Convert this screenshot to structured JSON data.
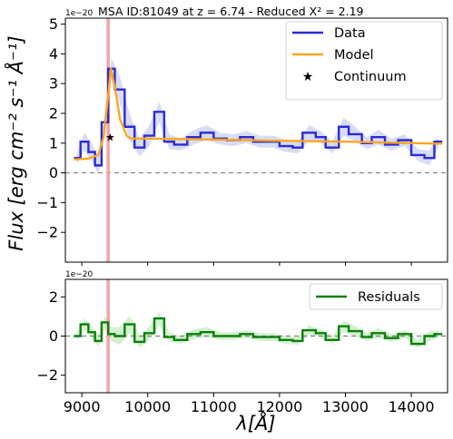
{
  "title": "MSA ID:81049 at z = 6.74 - Reduced X² = 2.19",
  "colors": {
    "data": "#2a2ad8",
    "band": "#b8bfee",
    "model": "#ffa51f",
    "residual": "#0c7f0c",
    "residual_band": "#b5e8b0",
    "line_marker": "#f4a3a3",
    "zero_line": "#808080"
  },
  "chart_data": [
    {
      "type": "line",
      "panel": "spectrum",
      "ylabel": "Flux [erg cm⁻² s⁻¹ Å⁻¹]",
      "scale_label": "1e−20",
      "xlim": [
        8750,
        14550
      ],
      "ylim": [
        -3,
        5.2
      ],
      "yticks": [
        -2,
        -1,
        0,
        1,
        2,
        3,
        4,
        5
      ],
      "ytick_labels": [
        "−2",
        "−1",
        "0",
        "1",
        "2",
        "3",
        "4",
        "5"
      ],
      "zero_line": true,
      "marker_line_x": 9400,
      "legend_position": "top-right",
      "legend": [
        "Data",
        "Model",
        "Continuum"
      ],
      "data": {
        "name": "Data",
        "bin_edges": [
          8880,
          8980,
          9100,
          9200,
          9300,
          9400,
          9500,
          9650,
          9800,
          9950,
          10100,
          10250,
          10400,
          10600,
          10800,
          11000,
          11200,
          11400,
          11600,
          11800,
          12000,
          12200,
          12350,
          12550,
          12700,
          12900,
          13050,
          13250,
          13400,
          13600,
          13800,
          14000,
          14200,
          14350,
          14470
        ],
        "values": [
          0.5,
          1.05,
          0.7,
          0.25,
          1.7,
          3.5,
          2.8,
          1.55,
          0.85,
          1.25,
          2.05,
          1.05,
          0.95,
          1.2,
          1.35,
          1.15,
          1.1,
          1.2,
          1.05,
          1.05,
          0.9,
          0.85,
          1.35,
          1.2,
          0.85,
          1.55,
          1.3,
          1.0,
          1.2,
          0.95,
          1.1,
          0.6,
          0.5,
          1.05
        ],
        "errors": [
          0.2,
          0.3,
          0.3,
          0.3,
          0.35,
          0.35,
          0.45,
          0.45,
          0.3,
          0.35,
          0.35,
          0.25,
          0.2,
          0.25,
          0.25,
          0.2,
          0.2,
          0.2,
          0.2,
          0.2,
          0.2,
          0.2,
          0.25,
          0.2,
          0.2,
          0.3,
          0.25,
          0.2,
          0.25,
          0.2,
          0.2,
          0.2,
          0.25,
          0.2
        ]
      },
      "model": {
        "name": "Model",
        "x": [
          8880,
          9100,
          9250,
          9330,
          9400,
          9440,
          9500,
          9580,
          9680,
          9750,
          10000,
          11000,
          12000,
          13000,
          14000,
          14470
        ],
        "y": [
          0.45,
          0.48,
          0.6,
          1.2,
          2.6,
          3.5,
          2.9,
          1.8,
          1.25,
          1.15,
          1.15,
          1.12,
          1.08,
          1.05,
          1.0,
          0.98
        ]
      },
      "continuum": {
        "name": "Continuum",
        "x": 9430,
        "y": 1.2
      }
    },
    {
      "type": "line",
      "panel": "residuals",
      "xlabel": "λ[Å]",
      "scale_label": "1e−20",
      "xlim": [
        8750,
        14550
      ],
      "ylim": [
        -2.9,
        2.9
      ],
      "yticks": [
        -2,
        0,
        2
      ],
      "ytick_labels": [
        "−2",
        "0",
        "2"
      ],
      "xticks": [
        9000,
        10000,
        11000,
        12000,
        13000,
        14000
      ],
      "xtick_labels": [
        "9000",
        "10000",
        "11000",
        "12000",
        "13000",
        "14000"
      ],
      "zero_line": true,
      "marker_line_x": 9400,
      "legend_position": "top-right",
      "legend": [
        "Residuals"
      ],
      "residuals": {
        "name": "Residuals",
        "bin_edges": [
          8880,
          8980,
          9100,
          9200,
          9300,
          9400,
          9500,
          9650,
          9800,
          9950,
          10100,
          10250,
          10400,
          10600,
          10800,
          11000,
          11200,
          11400,
          11600,
          11800,
          12000,
          12200,
          12350,
          12550,
          12700,
          12900,
          13050,
          13250,
          13400,
          13600,
          13800,
          14000,
          14200,
          14350,
          14470
        ],
        "values": [
          0.0,
          0.6,
          0.2,
          -0.25,
          0.7,
          0.1,
          0.0,
          0.6,
          -0.3,
          0.15,
          0.9,
          -0.05,
          -0.2,
          0.1,
          0.2,
          0.0,
          0.0,
          0.1,
          -0.05,
          -0.05,
          -0.2,
          -0.25,
          0.3,
          0.15,
          -0.2,
          0.5,
          0.25,
          -0.05,
          0.15,
          -0.1,
          0.1,
          -0.4,
          0.0,
          0.1
        ],
        "errors": [
          0.2,
          0.3,
          0.3,
          0.3,
          0.35,
          0.35,
          0.45,
          0.45,
          0.3,
          0.35,
          0.35,
          0.25,
          0.2,
          0.25,
          0.25,
          0.2,
          0.2,
          0.2,
          0.2,
          0.2,
          0.2,
          0.2,
          0.25,
          0.2,
          0.2,
          0.3,
          0.25,
          0.2,
          0.25,
          0.2,
          0.2,
          0.2,
          0.25,
          0.2
        ]
      }
    }
  ]
}
